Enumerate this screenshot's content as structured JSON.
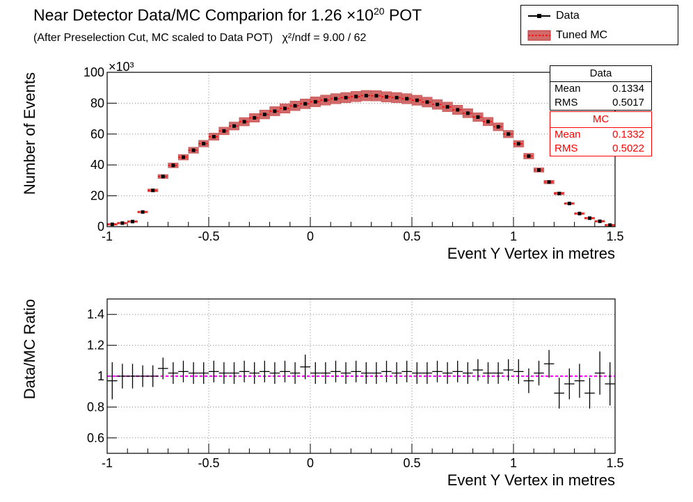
{
  "title": {
    "main": "Near Detector Data/MC Comparion for 1.26 ×10",
    "exponent": "20",
    "suffix": " POT",
    "subtitle": "(After Preselection Cut, MC scaled to Data POT)",
    "chi2": "χ²/ndf = 9.00 / 62"
  },
  "legend": {
    "data_label": "Data",
    "mc_label": "Tuned MC"
  },
  "stats": {
    "data": {
      "title": "Data",
      "mean_label": "Mean",
      "mean": "0.1334",
      "rms_label": "RMS",
      "rms": "0.5017"
    },
    "mc": {
      "title": "MC",
      "mean_label": "Mean",
      "mean": "0.1332",
      "rms_label": "RMS",
      "rms": "0.5022"
    }
  },
  "colors": {
    "mc_band": "#cc3333",
    "data": "#000000",
    "ratio_line": "#ff00ff"
  },
  "chart_data": [
    {
      "type": "bar",
      "xlabel": "Event Y Vertex in metres",
      "ylabel": "Number of Events",
      "y_multiplier": "×10³",
      "xlim": [
        -1,
        1.5
      ],
      "ylim": [
        0,
        100
      ],
      "xticks": [
        "-1",
        "-0.5",
        "0",
        "0.5",
        "1",
        "1.5"
      ],
      "yticks": [
        "0",
        "20",
        "40",
        "60",
        "80",
        "100"
      ],
      "grid": true,
      "bin_width": 0.05,
      "x": [
        -0.975,
        -0.925,
        -0.875,
        -0.825,
        -0.775,
        -0.725,
        -0.675,
        -0.625,
        -0.575,
        -0.525,
        -0.475,
        -0.425,
        -0.375,
        -0.325,
        -0.275,
        -0.225,
        -0.175,
        -0.125,
        -0.075,
        -0.025,
        0.025,
        0.075,
        0.125,
        0.175,
        0.225,
        0.275,
        0.325,
        0.375,
        0.425,
        0.475,
        0.525,
        0.575,
        0.625,
        0.675,
        0.725,
        0.775,
        0.825,
        0.875,
        0.925,
        0.975,
        1.025,
        1.075,
        1.125,
        1.175,
        1.225,
        1.275,
        1.325,
        1.375,
        1.425,
        1.475
      ],
      "series": [
        {
          "name": "Data",
          "values": [
            1.5,
            2.3,
            3.3,
            9.5,
            23.5,
            32.5,
            39.7,
            45.0,
            49.5,
            53.8,
            58.3,
            62.0,
            65.2,
            68.0,
            70.5,
            72.7,
            74.8,
            76.6,
            78.3,
            79.6,
            80.9,
            82.0,
            82.9,
            83.6,
            84.3,
            84.9,
            84.8,
            84.1,
            83.6,
            82.9,
            81.9,
            80.7,
            79.2,
            77.6,
            75.7,
            73.5,
            71.0,
            68.1,
            64.7,
            60.0,
            53.7,
            45.7,
            36.7,
            28.9,
            21.5,
            15.0,
            8.5,
            5.5,
            3.5,
            1.0
          ]
        },
        {
          "name": "Tuned MC",
          "values": [
            1.5,
            2.3,
            3.3,
            9.5,
            23.5,
            32.5,
            39.7,
            45.0,
            49.5,
            53.8,
            58.3,
            62.0,
            65.2,
            68.0,
            70.5,
            72.7,
            74.8,
            76.6,
            78.3,
            79.6,
            80.9,
            82.0,
            82.9,
            83.6,
            84.3,
            84.9,
            84.8,
            84.1,
            83.6,
            82.9,
            81.9,
            80.7,
            79.2,
            77.6,
            75.7,
            73.5,
            71.0,
            68.1,
            64.7,
            60.0,
            53.7,
            45.7,
            36.7,
            28.9,
            21.5,
            15.0,
            8.5,
            5.5,
            3.5,
            1.0
          ]
        }
      ]
    },
    {
      "type": "scatter",
      "xlabel": "Event Y Vertex in metres",
      "ylabel": "Data/MC Ratio",
      "xlim": [
        -1,
        1.5
      ],
      "ylim": [
        0.5,
        1.5
      ],
      "xticks": [
        "-1",
        "-0.5",
        "0",
        "0.5",
        "1",
        "1.5"
      ],
      "yticks": [
        "0.6",
        "0.8",
        "1",
        "1.2",
        "1.4"
      ],
      "grid": true,
      "reference_line": 1,
      "x": [
        -0.975,
        -0.925,
        -0.875,
        -0.825,
        -0.775,
        -0.725,
        -0.675,
        -0.625,
        -0.575,
        -0.525,
        -0.475,
        -0.425,
        -0.375,
        -0.325,
        -0.275,
        -0.225,
        -0.175,
        -0.125,
        -0.075,
        -0.025,
        0.025,
        0.075,
        0.125,
        0.175,
        0.225,
        0.275,
        0.325,
        0.375,
        0.425,
        0.475,
        0.525,
        0.575,
        0.625,
        0.675,
        0.725,
        0.775,
        0.825,
        0.875,
        0.925,
        0.975,
        1.025,
        1.075,
        1.125,
        1.175,
        1.225,
        1.275,
        1.325,
        1.375,
        1.425,
        1.475
      ],
      "series": [
        {
          "name": "Data",
          "values": [
            0.97,
            1.0,
            1.0,
            1.0,
            1.0,
            1.05,
            1.02,
            1.03,
            1.02,
            1.02,
            1.03,
            1.02,
            1.02,
            1.03,
            1.02,
            1.03,
            1.02,
            1.03,
            1.02,
            1.06,
            1.02,
            1.02,
            1.03,
            1.02,
            1.03,
            1.02,
            1.02,
            1.03,
            1.02,
            1.03,
            1.02,
            1.02,
            1.03,
            1.02,
            1.03,
            1.02,
            1.04,
            1.02,
            1.02,
            1.04,
            1.03,
            0.97,
            1.02,
            1.08,
            0.89,
            0.95,
            0.97,
            0.89,
            1.02,
            0.95
          ],
          "errors": [
            0.12,
            0.08,
            0.08,
            0.07,
            0.07,
            0.07,
            0.07,
            0.07,
            0.07,
            0.07,
            0.07,
            0.07,
            0.07,
            0.07,
            0.07,
            0.07,
            0.07,
            0.07,
            0.07,
            0.08,
            0.07,
            0.07,
            0.07,
            0.07,
            0.07,
            0.07,
            0.07,
            0.07,
            0.07,
            0.07,
            0.07,
            0.07,
            0.07,
            0.07,
            0.07,
            0.07,
            0.07,
            0.07,
            0.07,
            0.07,
            0.08,
            0.08,
            0.08,
            0.09,
            0.1,
            0.1,
            0.11,
            0.1,
            0.14,
            0.14
          ]
        }
      ]
    }
  ]
}
